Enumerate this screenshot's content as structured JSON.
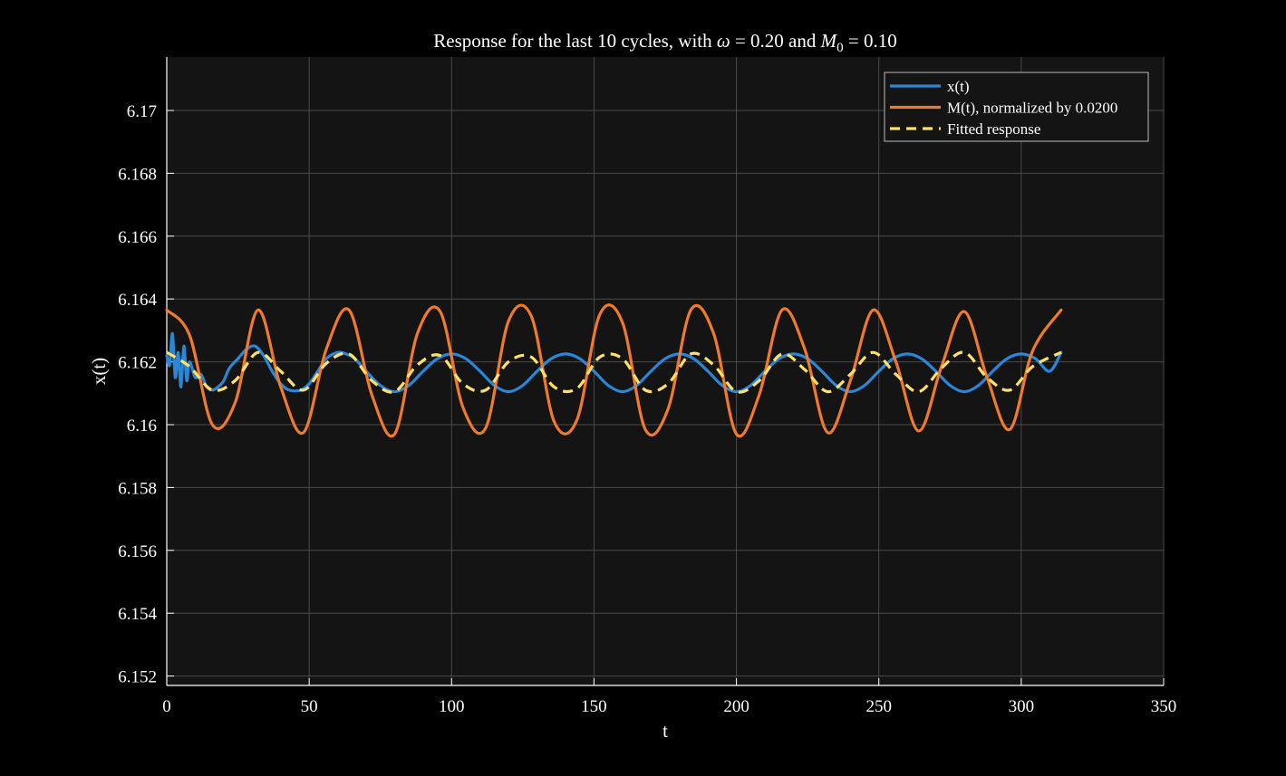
{
  "chart_data": {
    "type": "line",
    "title": {
      "prefix": "Response for the last 10 cycles, with ",
      "omega_symbol": "ω",
      "equals": " = ",
      "omega_value": "0.20",
      "and": " and ",
      "m_symbol": "M",
      "m_subscript": "0",
      "m_value": "0.10"
    },
    "xlabel": "t",
    "ylabel": "x(t)",
    "xlim": [
      0,
      350
    ],
    "ylim": [
      6.1517,
      6.1717
    ],
    "xticks": [
      0,
      50,
      100,
      150,
      200,
      250,
      300,
      350
    ],
    "yticks": [
      6.152,
      6.154,
      6.156,
      6.158,
      6.16,
      6.162,
      6.164,
      6.166,
      6.168,
      6.17
    ],
    "ytick_labels": [
      "6.152",
      "6.154",
      "6.156",
      "6.158",
      "6.16",
      "6.162",
      "6.164",
      "6.166",
      "6.168",
      "6.17"
    ],
    "grid": true,
    "legend_position": "top-right",
    "background_color": "#141414",
    "figure_color": "#000000",
    "grid_color": "#4a4a4a",
    "series": [
      {
        "name": "x(t)",
        "color": "#2a86d6",
        "style": "solid",
        "x": [
          0,
          1,
          2,
          3,
          4,
          5,
          6,
          7,
          8,
          10,
          12,
          14,
          16,
          18,
          20,
          22,
          25,
          28,
          31,
          34,
          37,
          40,
          43,
          47,
          50,
          53,
          56,
          60,
          63,
          66,
          70,
          75,
          80,
          85,
          90,
          95,
          100,
          105,
          110,
          115,
          120,
          125,
          130,
          135,
          140,
          145,
          150,
          155,
          160,
          165,
          170,
          175,
          180,
          185,
          190,
          195,
          200,
          205,
          210,
          215,
          220,
          225,
          230,
          235,
          240,
          245,
          250,
          255,
          260,
          265,
          270,
          275,
          280,
          285,
          290,
          295,
          300,
          305,
          310,
          314
        ],
        "y": [
          6.1622,
          6.1619,
          6.1629,
          6.1615,
          6.1623,
          6.1612,
          6.1625,
          6.1614,
          6.162,
          6.1615,
          6.1616,
          6.1612,
          6.1611,
          6.1612,
          6.1614,
          6.1618,
          6.1621,
          6.1624,
          6.1625,
          6.1622,
          6.1617,
          6.1613,
          6.1611,
          6.1611,
          6.1613,
          6.1617,
          6.1621,
          6.1623,
          6.16225,
          6.1621,
          6.1617,
          6.16125,
          6.16105,
          6.16125,
          6.1617,
          6.1621,
          6.16225,
          6.1621,
          6.1617,
          6.16125,
          6.16105,
          6.16125,
          6.1617,
          6.1621,
          6.16225,
          6.1621,
          6.1617,
          6.16125,
          6.16105,
          6.16125,
          6.1617,
          6.1621,
          6.16225,
          6.1621,
          6.1617,
          6.16125,
          6.16105,
          6.16125,
          6.1617,
          6.1621,
          6.16225,
          6.1621,
          6.1617,
          6.16125,
          6.16105,
          6.16125,
          6.1617,
          6.1621,
          6.16225,
          6.1621,
          6.1617,
          6.16125,
          6.16105,
          6.16125,
          6.1617,
          6.1621,
          6.16225,
          6.1621,
          6.1617,
          6.1623
        ]
      },
      {
        "name": "M(t), normalized by 0.0200",
        "color": "#f07a2a",
        "style": "solid",
        "x": [
          0,
          8,
          16,
          24,
          32,
          40,
          48,
          56,
          64,
          72,
          80,
          88,
          96,
          104,
          112,
          120,
          128,
          136,
          144,
          152,
          160,
          168,
          176,
          184,
          192,
          200,
          208,
          216,
          224,
          232,
          240,
          248,
          256,
          264,
          272,
          280,
          288,
          296,
          304,
          314
        ],
        "y": [
          6.16365,
          6.16285,
          6.16,
          6.1607,
          6.16365,
          6.1612,
          6.15975,
          6.1624,
          6.16365,
          6.16095,
          6.1597,
          6.1629,
          6.1636,
          6.16055,
          6.1599,
          6.1633,
          6.16345,
          6.1601,
          6.16015,
          6.1635,
          6.16325,
          6.15985,
          6.1605,
          6.16365,
          6.1629,
          6.1597,
          6.16095,
          6.16365,
          6.1624,
          6.15975,
          6.1614,
          6.16365,
          6.162,
          6.1598,
          6.16185,
          6.1636,
          6.1615,
          6.15985,
          6.16235,
          6.16365
        ]
      },
      {
        "name": "Fitted response",
        "color": "#ffe066",
        "style": "dashed",
        "x": [
          0,
          8,
          16,
          24,
          32,
          40,
          48,
          56,
          64,
          72,
          80,
          88,
          96,
          104,
          112,
          120,
          128,
          136,
          144,
          152,
          160,
          168,
          176,
          184,
          192,
          200,
          208,
          216,
          224,
          232,
          240,
          248,
          256,
          264,
          272,
          280,
          288,
          296,
          304,
          314
        ],
        "y": [
          6.1623,
          6.16185,
          6.1611,
          6.1614,
          6.1623,
          6.1617,
          6.1611,
          6.16195,
          6.16225,
          6.1614,
          6.16105,
          6.1619,
          6.1622,
          6.1613,
          6.1611,
          6.162,
          6.16215,
          6.1612,
          6.16115,
          6.16215,
          6.1621,
          6.1611,
          6.1613,
          6.16225,
          6.1619,
          6.16105,
          6.1614,
          6.16225,
          6.16175,
          6.16105,
          6.1616,
          6.1623,
          6.1616,
          6.16105,
          6.1618,
          6.1623,
          6.1615,
          6.1611,
          6.16185,
          6.1623
        ]
      }
    ]
  }
}
